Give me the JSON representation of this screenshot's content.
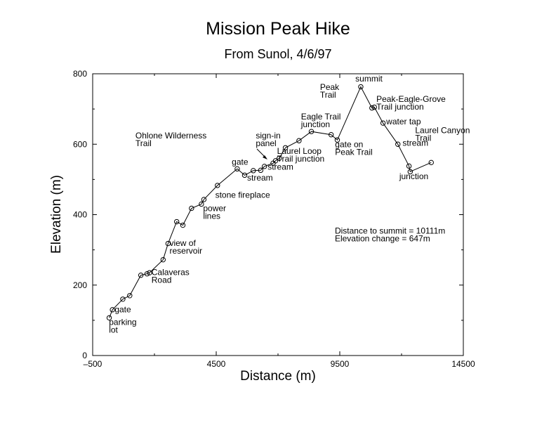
{
  "chart_data": {
    "type": "line",
    "title": "Mission Peak Hike",
    "subtitle": "From Sunol, 4/6/97",
    "xlabel": "Distance (m)",
    "ylabel": "Elevation (m)",
    "xlim": [
      -500,
      14500
    ],
    "ylim": [
      0,
      800
    ],
    "xticks": [
      -500,
      4500,
      9500,
      14500
    ],
    "yticks": [
      0,
      200,
      400,
      600,
      800
    ],
    "grid": false,
    "marker": "circle",
    "series": [
      {
        "x": [
          170,
          300,
          720,
          1000,
          1450,
          1700,
          1800,
          2350,
          2550,
          2900,
          3150,
          3500,
          3900,
          4000,
          4550,
          5350,
          5650,
          6000,
          6300,
          6450,
          6800,
          6900,
          7050,
          7300,
          7850,
          8350,
          9150,
          9400,
          10350,
          10800,
          10900,
          11250,
          11850,
          12300,
          12350,
          13200
        ],
        "y": [
          107,
          130,
          160,
          170,
          228,
          232,
          235,
          272,
          318,
          380,
          370,
          418,
          430,
          443,
          483,
          530,
          512,
          525,
          526,
          537,
          546,
          553,
          560,
          590,
          610,
          636,
          627,
          612,
          763,
          703,
          705,
          660,
          600,
          538,
          522,
          548
        ]
      }
    ],
    "annotations": [
      {
        "lines": [
          "parking",
          "lot"
        ],
        "x": 160,
        "y": 87
      },
      {
        "lines": [
          "gate"
        ],
        "x": 390,
        "y": 123
      },
      {
        "lines": [
          "Calaveras",
          "Road"
        ],
        "x": 1880,
        "y": 228
      },
      {
        "lines": [
          "view of",
          "reservoir"
        ],
        "x": 2610,
        "y": 311
      },
      {
        "lines": [
          "power",
          "lines"
        ],
        "x": 3970,
        "y": 410
      },
      {
        "lines": [
          "stone fireplace"
        ],
        "x": 4460,
        "y": 448
      },
      {
        "lines": [
          "Ohlone Wilderness",
          "Trail"
        ],
        "x": 1230,
        "y": 616
      },
      {
        "lines": [
          "gate"
        ],
        "x": 5130,
        "y": 542
      },
      {
        "lines": [
          "stream"
        ],
        "x": 5750,
        "y": 497
      },
      {
        "lines": [
          "sign-in",
          "panel"
        ],
        "x": 6100,
        "y": 616
      },
      {
        "lines": [
          "Laurel Loop",
          "Trail junction"
        ],
        "x": 6960,
        "y": 573
      },
      {
        "lines": [
          "stream"
        ],
        "x": 6580,
        "y": 528
      },
      {
        "lines": [
          "Eagle Trail",
          "junction"
        ],
        "x": 7930,
        "y": 670
      },
      {
        "lines": [
          "gate on",
          "Peak Trail"
        ],
        "x": 9310,
        "y": 592
      },
      {
        "lines": [
          "Peak",
          "Trail"
        ],
        "x": 8700,
        "y": 754
      },
      {
        "lines": [
          "summit"
        ],
        "x": 10130,
        "y": 778
      },
      {
        "lines": [
          "Peak-Eagle-Grove",
          "Trail junction"
        ],
        "x": 10980,
        "y": 720
      },
      {
        "lines": [
          "water tap"
        ],
        "x": 11380,
        "y": 656
      },
      {
        "lines": [
          "Laurel Canyon",
          "Trail"
        ],
        "x": 12550,
        "y": 631
      },
      {
        "lines": [
          "stream"
        ],
        "x": 12040,
        "y": 596
      },
      {
        "lines": [
          "junction"
        ],
        "x": 11910,
        "y": 501
      },
      {
        "lines": [
          "Distance to summit = 10111m",
          "Elevation change = 647m"
        ],
        "x": 9300,
        "y": 346
      }
    ]
  }
}
